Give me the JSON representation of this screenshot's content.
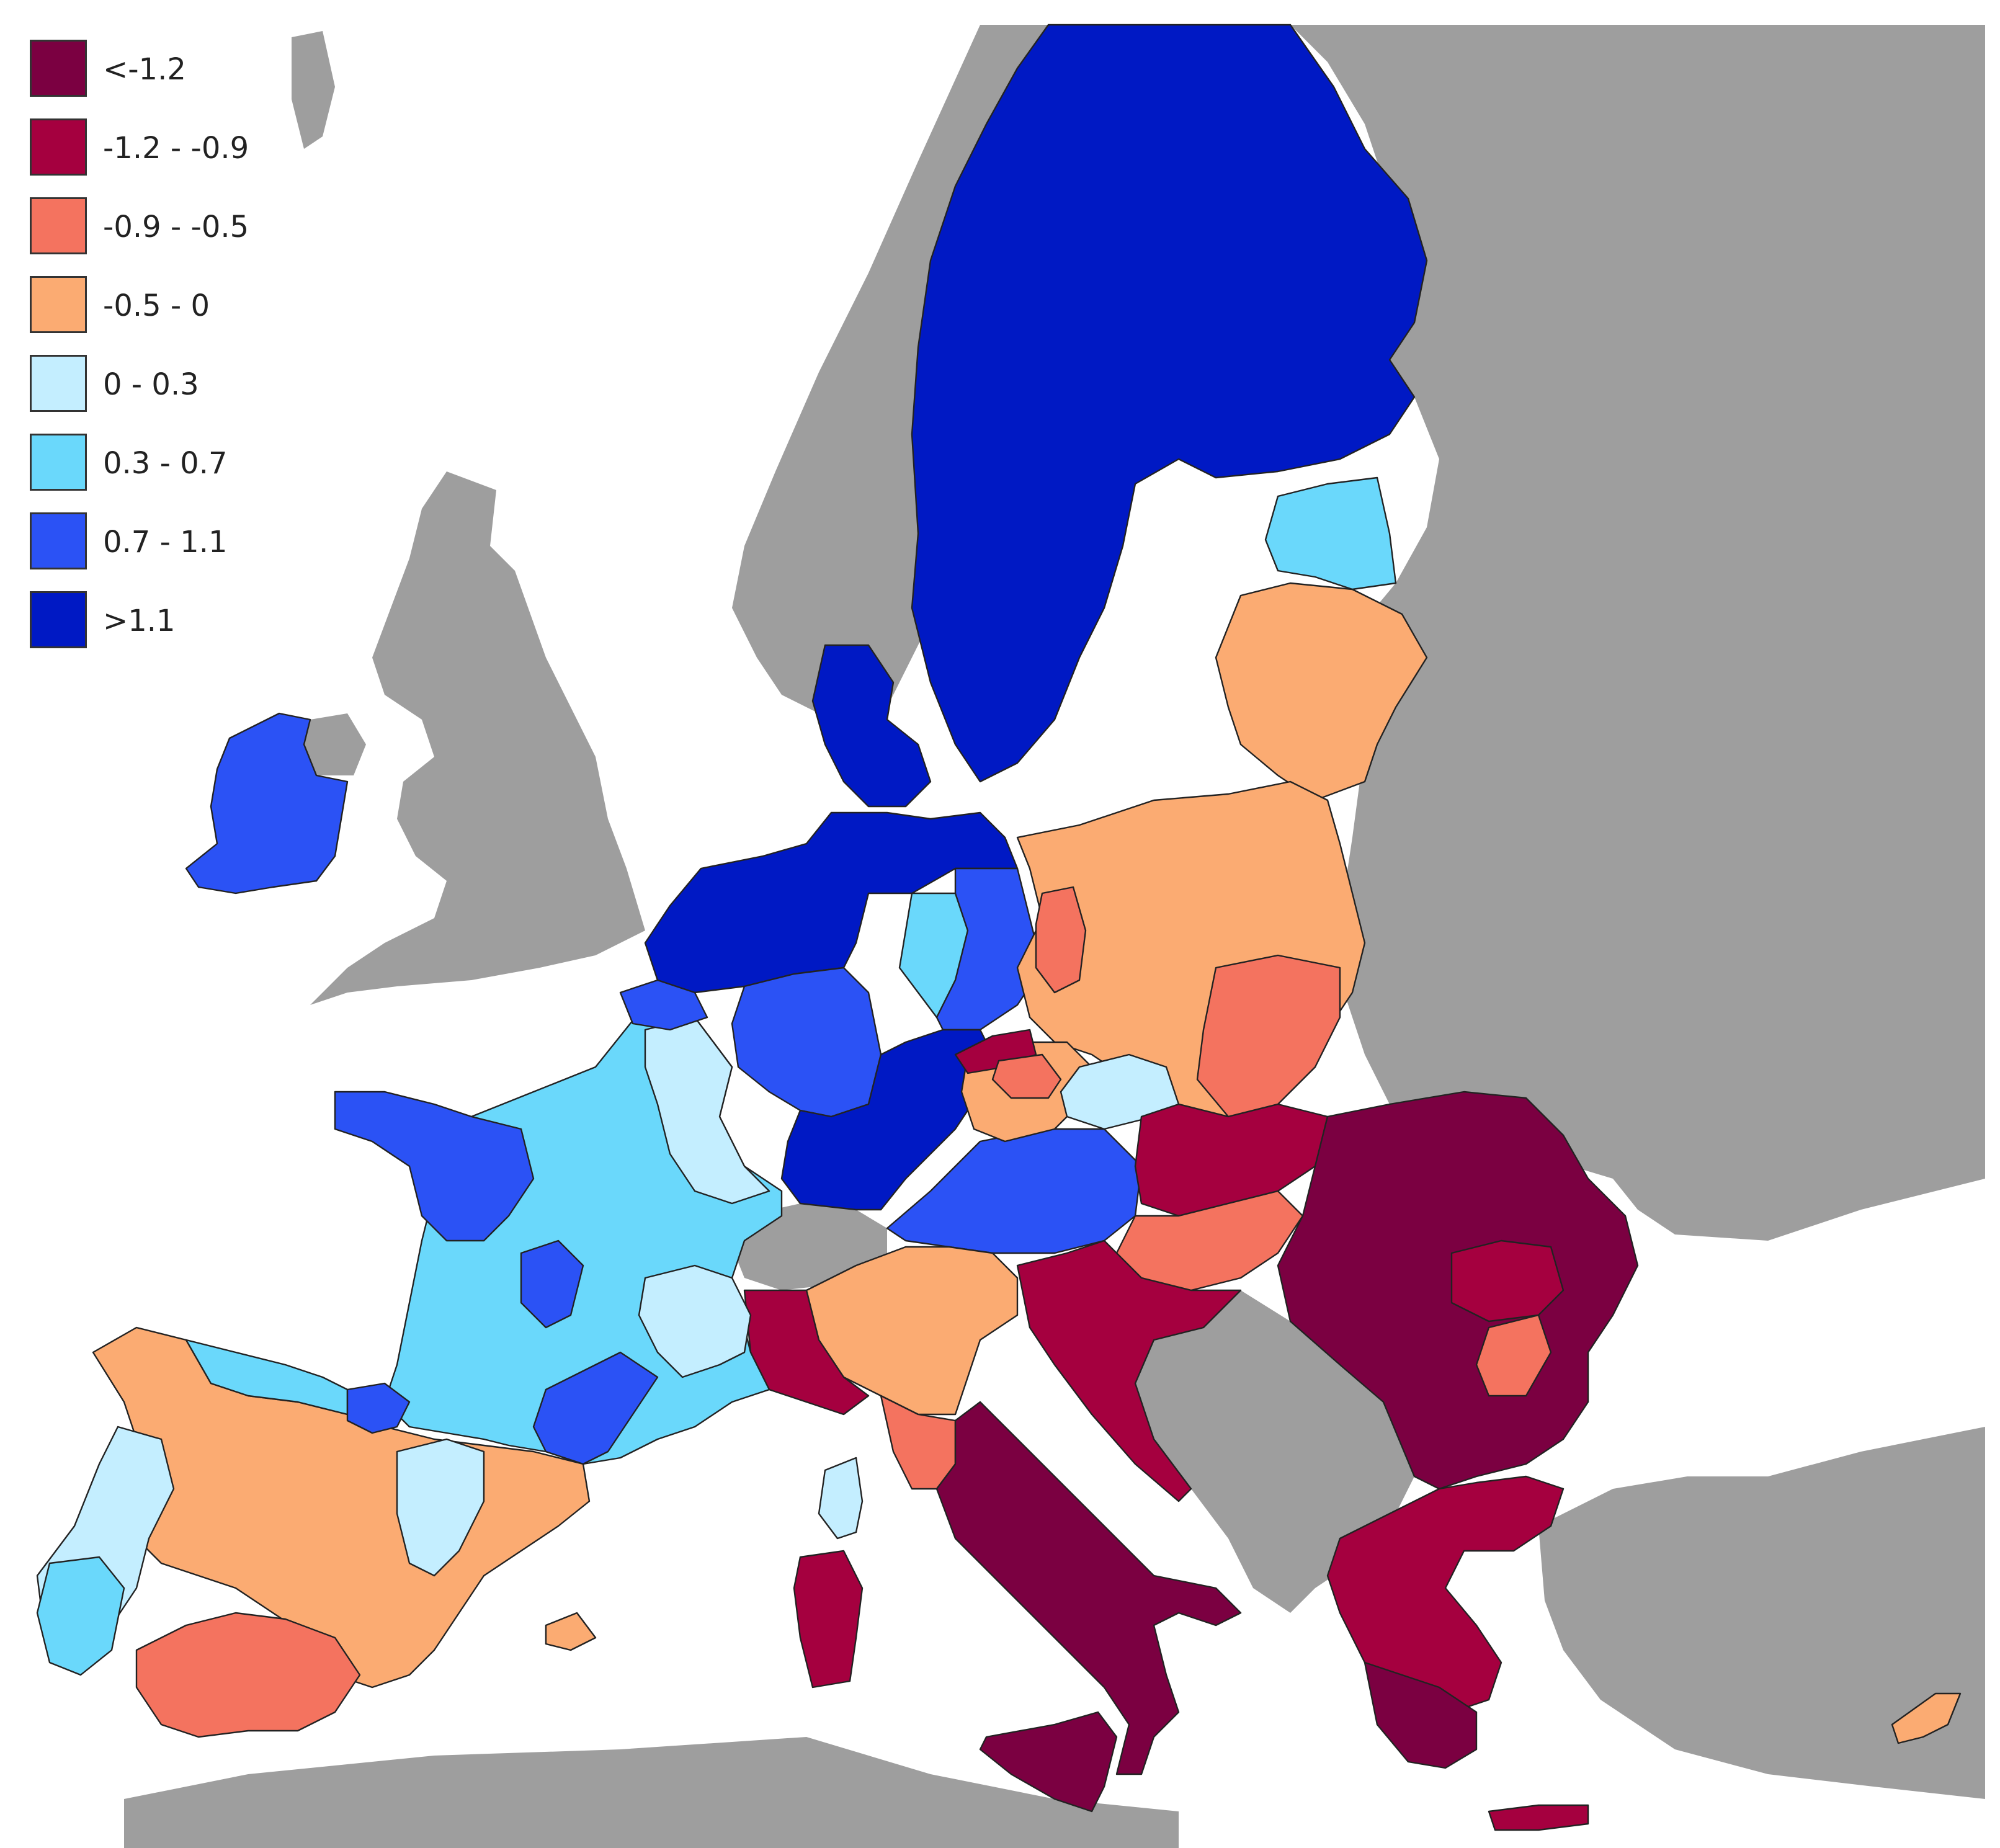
{
  "colors": {
    "sea": "#ffffff",
    "non_member": "#9e9e9e",
    "border": "#222222"
  },
  "legend": {
    "items": [
      {
        "label": "<-1.2",
        "color": "#7b0041"
      },
      {
        "label": "-1.2 - -0.9",
        "color": "#a5003f"
      },
      {
        "label": "-0.9 - -0.5",
        "color": "#f4735f"
      },
      {
        "label": "-0.5 - 0",
        "color": "#fbab72"
      },
      {
        "label": "0 - 0.3",
        "color": "#c4eeff"
      },
      {
        "label": "0.3 - 0.7",
        "color": "#6ad8fb"
      },
      {
        "label": "0.7 - 1.1",
        "color": "#2b52f5"
      },
      {
        "label": ">1.1",
        "color": "#0019c4"
      }
    ]
  },
  "regions": [
    {
      "name": "sweden-finland",
      "class": 7
    },
    {
      "name": "baltics-estonia",
      "class": 5
    },
    {
      "name": "baltics-latvia-lithuania",
      "class": 3
    },
    {
      "name": "ireland",
      "class": 6
    },
    {
      "name": "denmark",
      "class": 7
    },
    {
      "name": "benelux-north-germany",
      "class": 7
    },
    {
      "name": "west-germany",
      "class": 6
    },
    {
      "name": "east-germany-sachsen-anhalt",
      "class": 5
    },
    {
      "name": "east-germany-brandenburg",
      "class": 6
    },
    {
      "name": "south-germany",
      "class": 7
    },
    {
      "name": "austria-slovenia",
      "class": 6
    },
    {
      "name": "poland",
      "class": 3
    },
    {
      "name": "poland-lubuskie",
      "class": 2
    },
    {
      "name": "czechia-west",
      "class": 3
    },
    {
      "name": "czechia-severozapad",
      "class": 1
    },
    {
      "name": "czechia-praha",
      "class": 2
    },
    {
      "name": "czechia-east",
      "class": 4
    },
    {
      "name": "poland-southeast",
      "class": 2
    },
    {
      "name": "slovakia-hungary-north",
      "class": 1
    },
    {
      "name": "hungary-south",
      "class": 2
    },
    {
      "name": "croatia",
      "class": 1
    },
    {
      "name": "romania-bulgaria",
      "class": 0
    },
    {
      "name": "romania-bucuresti",
      "class": 1
    },
    {
      "name": "romania-sud",
      "class": 2
    },
    {
      "name": "greece",
      "class": 1
    },
    {
      "name": "greece-south",
      "class": 0
    },
    {
      "name": "italy-north",
      "class": 3
    },
    {
      "name": "italy-northwest",
      "class": 1
    },
    {
      "name": "italy-toscana",
      "class": 2
    },
    {
      "name": "italy-south",
      "class": 0
    },
    {
      "name": "sicily",
      "class": 0
    },
    {
      "name": "sardinia",
      "class": 1
    },
    {
      "name": "corsica",
      "class": 4
    },
    {
      "name": "crete",
      "class": 1
    },
    {
      "name": "cyprus",
      "class": 3
    },
    {
      "name": "balearics",
      "class": 3
    },
    {
      "name": "france",
      "class": 5
    },
    {
      "name": "france-northeast",
      "class": 4
    },
    {
      "name": "france-rhone-alpes",
      "class": 4
    },
    {
      "name": "france-brittany-pays-loire",
      "class": 6
    },
    {
      "name": "france-limousin",
      "class": 6
    },
    {
      "name": "france-languedoc",
      "class": 6
    },
    {
      "name": "belgium-south",
      "class": 6
    },
    {
      "name": "spain",
      "class": 3
    },
    {
      "name": "spain-andalucia",
      "class": 2
    },
    {
      "name": "spain-north",
      "class": 5
    },
    {
      "name": "spain-basque",
      "class": 6
    },
    {
      "name": "spain-aragon",
      "class": 4
    },
    {
      "name": "portugal",
      "class": 4
    },
    {
      "name": "portugal-lisboa",
      "class": 5
    }
  ]
}
